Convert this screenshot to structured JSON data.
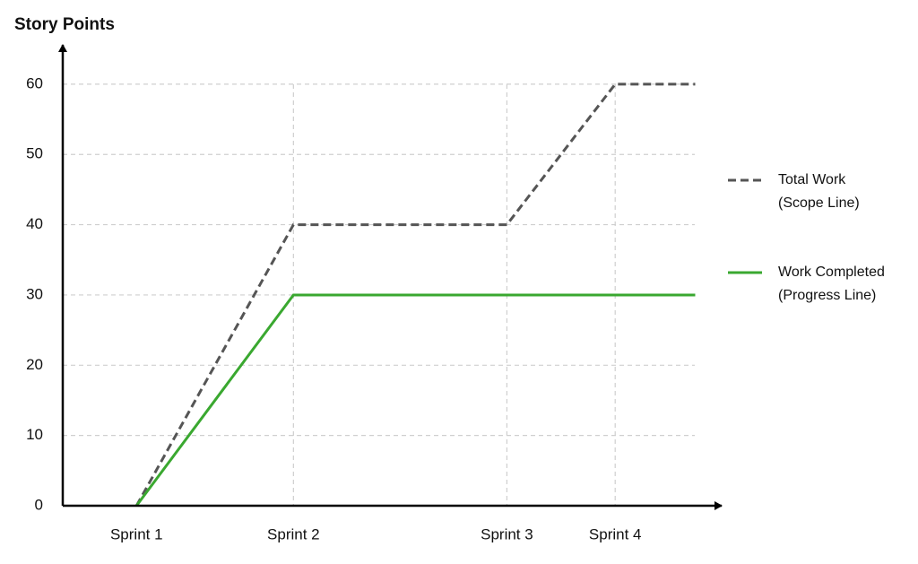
{
  "chart_data": {
    "type": "line",
    "ylabel": "Story Points",
    "x": [
      1,
      2,
      3.36,
      4.05,
      4.56
    ],
    "xlim": [
      0.53,
      4.7
    ],
    "xticks": [
      {
        "value": 1,
        "label": "Sprint 1"
      },
      {
        "value": 2,
        "label": "Sprint 2"
      },
      {
        "value": 3.36,
        "label": "Sprint 3"
      },
      {
        "value": 4.05,
        "label": "Sprint 4"
      }
    ],
    "ylim": [
      0,
      65.6
    ],
    "yticks": [
      0,
      10,
      20,
      30,
      40,
      50,
      60
    ],
    "grid": true,
    "legend": "right",
    "series": [
      {
        "name": [
          "Total Work",
          "(Scope Line)"
        ],
        "color": "#555555",
        "dashed": true,
        "values": [
          0,
          40,
          40,
          60,
          60
        ]
      },
      {
        "name": [
          "Work Completed",
          "(Progress Line)"
        ],
        "color": "#3aa830",
        "dashed": false,
        "values": [
          0,
          30,
          30,
          30,
          30
        ]
      }
    ]
  }
}
